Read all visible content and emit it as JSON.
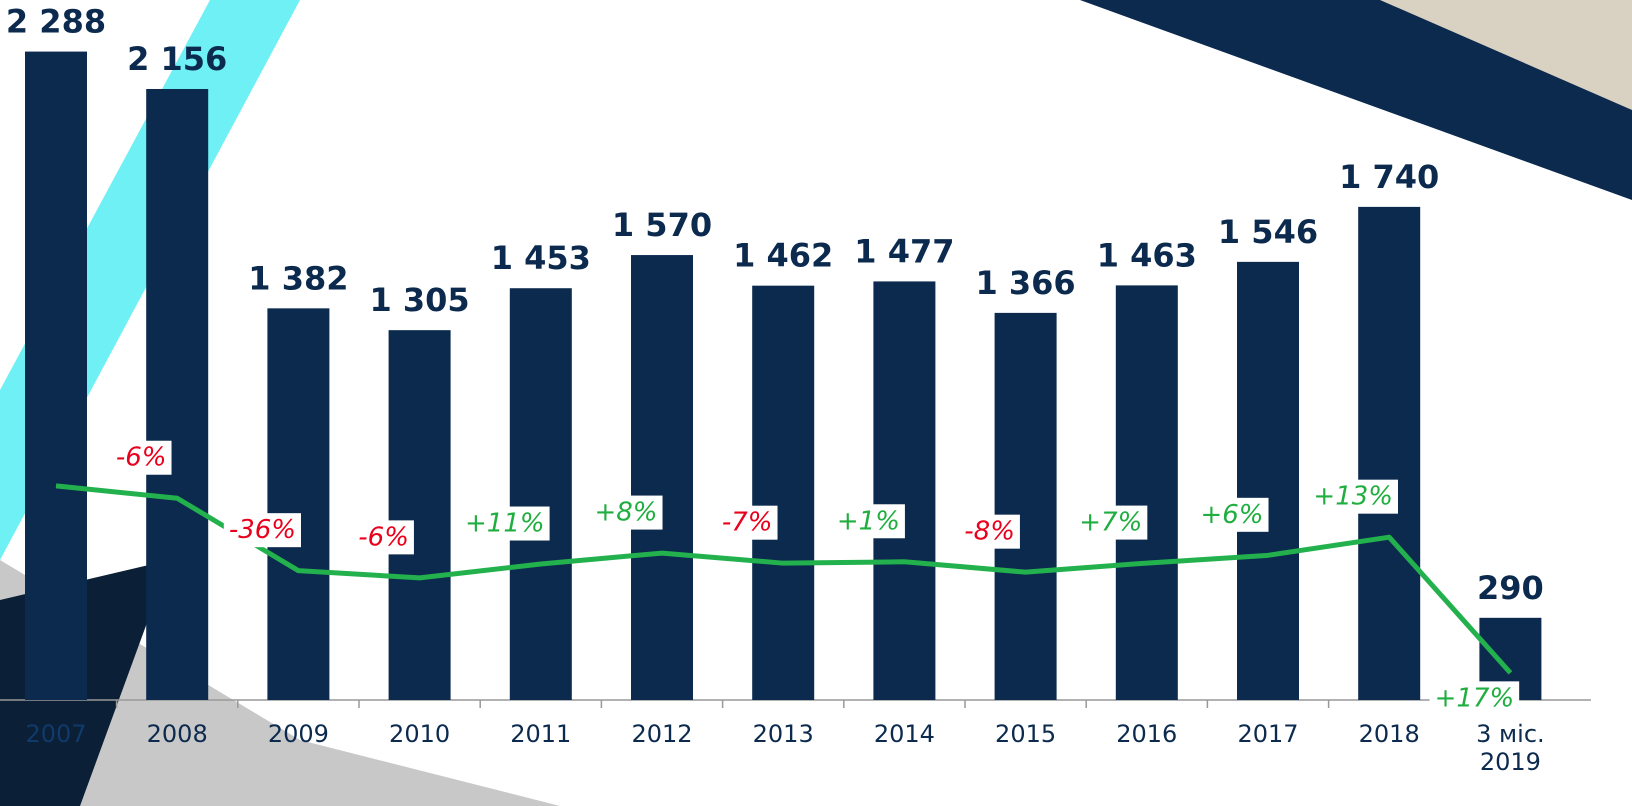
{
  "chart_data": {
    "type": "bar",
    "categories": [
      "2007",
      "2008",
      "2009",
      "2010",
      "2011",
      "2012",
      "2013",
      "2014",
      "2015",
      "2016",
      "2017",
      "2018",
      "3 міс. 2019"
    ],
    "values": [
      2288,
      2156,
      1382,
      1305,
      1453,
      1570,
      1462,
      1477,
      1366,
      1463,
      1546,
      1740,
      290
    ],
    "value_labels": [
      "2 288",
      "2 156",
      "1 382",
      "1 305",
      "1 453",
      "1 570",
      "1 462",
      "1 477",
      "1 366",
      "1 463",
      "1 546",
      "1 740",
      "290"
    ],
    "color": "#0b2a4e",
    "ylim": [
      0,
      2470
    ],
    "line": {
      "color": "#22b14c",
      "axis": "y2",
      "values": [
        2288,
        2156,
        1382,
        1305,
        1453,
        1570,
        1462,
        1477,
        1366,
        1463,
        1546,
        1740,
        290
      ]
    },
    "y2lim": [
      0,
      7480
    ],
    "annotations": [
      {
        "text": "-6%",
        "color": "#e8001c"
      },
      {
        "text": "-36%",
        "color": "#e8001c"
      },
      {
        "text": "-6%",
        "color": "#e8001c"
      },
      {
        "text": "+11%",
        "color": "#1fae3f"
      },
      {
        "text": "+8%",
        "color": "#1fae3f"
      },
      {
        "text": "-7%",
        "color": "#e8001c"
      },
      {
        "text": "+1%",
        "color": "#1fae3f"
      },
      {
        "text": "-8%",
        "color": "#e8001c"
      },
      {
        "text": "+7%",
        "color": "#1fae3f"
      },
      {
        "text": "+6%",
        "color": "#1fae3f"
      },
      {
        "text": "+13%",
        "color": "#1fae3f"
      },
      {
        "text": "+17%",
        "color": "#1fae3f"
      }
    ]
  }
}
